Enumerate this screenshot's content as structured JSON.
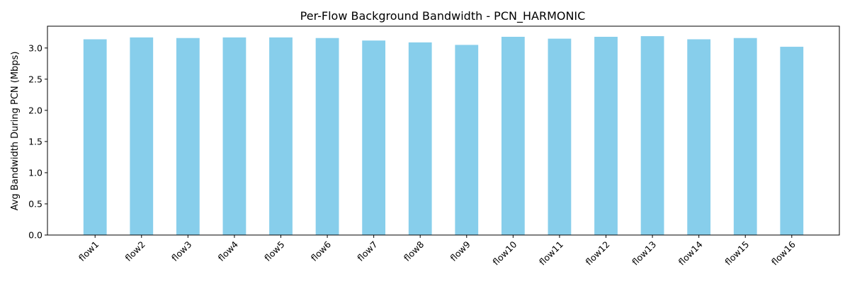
{
  "chart_data": {
    "type": "bar",
    "title": "Per-Flow Background Bandwidth - PCN_HARMONIC",
    "xlabel": "",
    "ylabel": "Avg Bandwidth During PCN (Mbps)",
    "categories": [
      "flow1",
      "flow2",
      "flow3",
      "flow4",
      "flow5",
      "flow6",
      "flow7",
      "flow8",
      "flow9",
      "flow10",
      "flow11",
      "flow12",
      "flow13",
      "flow14",
      "flow15",
      "flow16"
    ],
    "values": [
      3.14,
      3.17,
      3.16,
      3.17,
      3.17,
      3.16,
      3.12,
      3.09,
      3.05,
      3.18,
      3.15,
      3.18,
      3.19,
      3.14,
      3.16,
      3.02
    ],
    "ylim": [
      0,
      3.35
    ],
    "yticks": [
      0.0,
      0.5,
      1.0,
      1.5,
      2.0,
      2.5,
      3.0
    ],
    "ytick_labels": [
      "0.0",
      "0.5",
      "1.0",
      "1.5",
      "2.0",
      "2.5",
      "3.0"
    ],
    "bar_color": "#87ceeb",
    "grid": false,
    "legend": "none"
  }
}
